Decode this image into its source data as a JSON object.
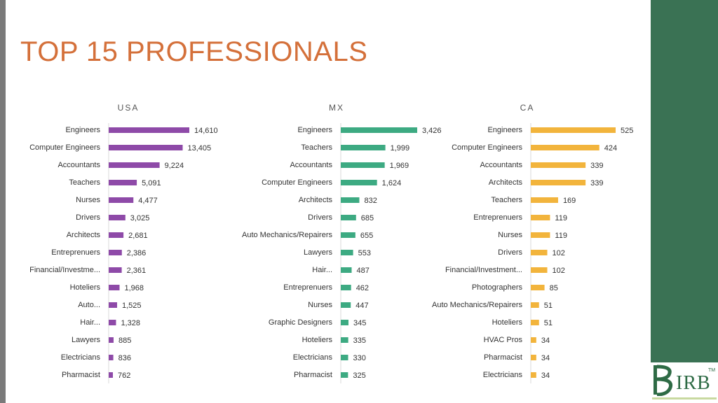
{
  "page": {
    "title": "TOP 15 PROFESSIONALS"
  },
  "logo": {
    "text": "IRB",
    "tm": "TM",
    "tagline": ""
  },
  "chart_data": [
    {
      "type": "bar",
      "orientation": "horizontal",
      "title": "USA",
      "color": "#8e4aa8",
      "categories": [
        "Engineers",
        "Computer Engineers",
        "Accountants",
        "Teachers",
        "Nurses",
        "Drivers",
        "Architects",
        "Entreprenuers",
        "Financial/Investme...",
        "Hoteliers",
        "Auto...",
        "Hair...",
        "Lawyers",
        "Electricians",
        "Pharmacist"
      ],
      "values": [
        14610,
        13405,
        9224,
        5091,
        4477,
        3025,
        2681,
        2386,
        2361,
        1968,
        1525,
        1328,
        885,
        836,
        762
      ],
      "data_labels": [
        "14,610",
        "13,405",
        "9,224",
        "5,091",
        "4,477",
        "3,025",
        "2,681",
        "2,386",
        "2,361",
        "1,968",
        "1,525",
        "1,328",
        "885",
        "836",
        "762"
      ]
    },
    {
      "type": "bar",
      "orientation": "horizontal",
      "title": "MX",
      "color": "#3daa82",
      "categories": [
        "Engineers",
        "Teachers",
        "Accountants",
        "Computer Engineers",
        "Architects",
        "Drivers",
        "Auto Mechanics/Repairers",
        "Lawyers",
        "Hair...",
        "Entreprenuers",
        "Nurses",
        "Graphic Designers",
        "Hoteliers",
        "Electricians",
        "Pharmacist"
      ],
      "values": [
        3426,
        1999,
        1969,
        1624,
        832,
        685,
        655,
        553,
        487,
        462,
        447,
        345,
        335,
        330,
        325
      ],
      "data_labels": [
        "3,426",
        "1,999",
        "1,969",
        "1,624",
        "832",
        "685",
        "655",
        "553",
        "487",
        "462",
        "447",
        "345",
        "335",
        "330",
        "325"
      ]
    },
    {
      "type": "bar",
      "orientation": "horizontal",
      "title": "CA",
      "color": "#f2b43c",
      "categories": [
        "Engineers",
        "Computer Engineers",
        "Accountants",
        "Architects",
        "Teachers",
        "Entreprenuers",
        "Nurses",
        "Drivers",
        "Financial/Investment...",
        "Photographers",
        "Auto Mechanics/Repairers",
        "Hoteliers",
        "HVAC Pros",
        "Pharmacist",
        "Electricians"
      ],
      "values": [
        525,
        424,
        339,
        339,
        169,
        119,
        119,
        102,
        102,
        85,
        51,
        51,
        34,
        34,
        34
      ],
      "data_labels": [
        "525",
        "424",
        "339",
        "339",
        "169",
        "119",
        "119",
        "102",
        "102",
        "85",
        "51",
        "51",
        "34",
        "34",
        "34"
      ]
    }
  ]
}
